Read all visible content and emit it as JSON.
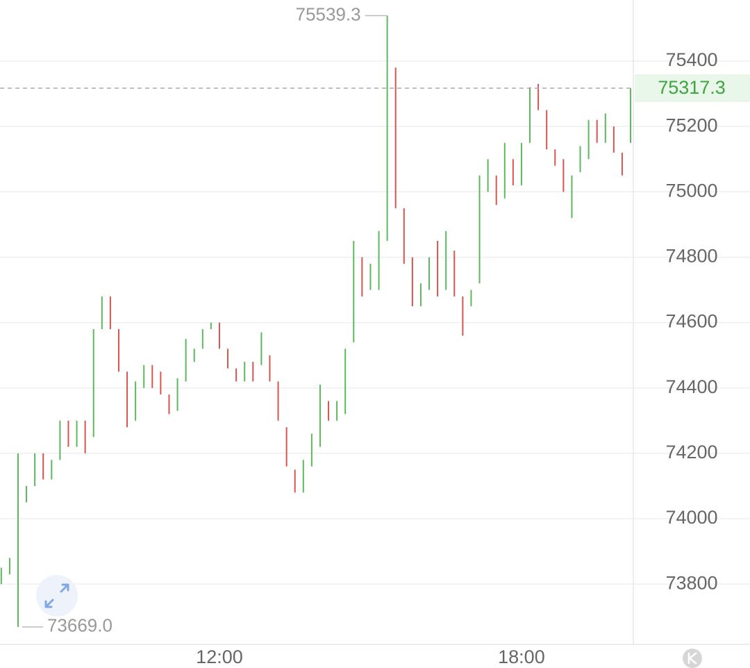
{
  "chart_data": {
    "type": "range_bar",
    "x": [
      460,
      470,
      480,
      490,
      500,
      510,
      520,
      530,
      540,
      550,
      560,
      570,
      580,
      590,
      600,
      610,
      620,
      630,
      640,
      650,
      660,
      670,
      680,
      690,
      700,
      710,
      720,
      730,
      740,
      750,
      760,
      770,
      780,
      790,
      800,
      810,
      820,
      830,
      840,
      850,
      860,
      870,
      880,
      890,
      900,
      910,
      920,
      930,
      940,
      950,
      960,
      970,
      980,
      990,
      1000,
      1010,
      1020,
      1030,
      1040,
      1050,
      1060,
      1070,
      1080,
      1090,
      1100,
      1110,
      1120,
      1130,
      1140,
      1150,
      1160,
      1170,
      1180,
      1190,
      1200,
      1210
    ],
    "open": [
      73800,
      73830,
      73669,
      74050,
      74100,
      74200,
      74120,
      74180,
      74300,
      74220,
      74300,
      74250,
      74580,
      74680,
      74580,
      74450,
      74300,
      74400,
      74470,
      74450,
      74380,
      74330,
      74420,
      74480,
      74520,
      74580,
      74600,
      74520,
      74460,
      74420,
      74480,
      74470,
      74500,
      74420,
      74280,
      74150,
      74080,
      74160,
      74220,
      74360,
      74300,
      74320,
      74540,
      74800,
      74700,
      74700,
      74850,
      75380,
      74950,
      74800,
      74650,
      74700,
      74850,
      74700,
      74820,
      74680,
      74650,
      74720,
      75000,
      75050,
      74980,
      75100,
      75020,
      75150,
      75330,
      75250,
      75130,
      75100,
      74920,
      75060,
      75100,
      75220,
      75150,
      75200,
      75120,
      75150
    ],
    "close": [
      73850,
      73880,
      74200,
      74100,
      74200,
      74120,
      74180,
      74300,
      74220,
      74300,
      74200,
      74580,
      74680,
      74580,
      74450,
      74280,
      74420,
      74470,
      74400,
      74380,
      74320,
      74430,
      74550,
      74520,
      74580,
      74600,
      74520,
      74460,
      74420,
      74480,
      74420,
      74570,
      74420,
      74300,
      74160,
      74080,
      74180,
      74260,
      74410,
      74300,
      74360,
      74520,
      74850,
      74680,
      74780,
      74880,
      75539.3,
      74950,
      74780,
      74650,
      74720,
      74800,
      74680,
      74880,
      74680,
      74560,
      74700,
      75050,
      75100,
      74960,
      75150,
      75020,
      75150,
      75320,
      75250,
      75130,
      75080,
      75000,
      75050,
      75140,
      75220,
      75150,
      75240,
      75120,
      75050,
      75317.3
    ],
    "up_color": "#5cb85c",
    "down_color": "#d9534f",
    "xlim": [
      458.5,
      1213.3
    ],
    "xticks": [
      {
        "value": 720,
        "label": "12:00"
      },
      {
        "value": 1080,
        "label": "18:00"
      }
    ],
    "ylim": [
      73615.5,
      75587
    ],
    "yticks": [
      73800,
      74000,
      74200,
      74400,
      74600,
      74800,
      75000,
      75200,
      75400
    ],
    "grid": true,
    "max_label": 75539.3,
    "min_label": {
      "value": 73669,
      "label": "73669.0"
    },
    "last_price": 75317.3
  }
}
